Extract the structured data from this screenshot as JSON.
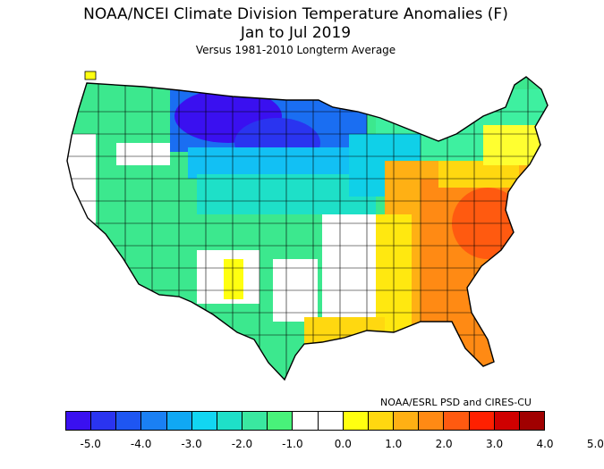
{
  "title": "NOAA/NCEI Climate Division Temperature Anomalies (F)",
  "subtitle": "Jan to Jul 2019",
  "baseline": "Versus 1981-2010 Longterm Average",
  "credit": "NOAA/ESRL PSD and CIRES-CU",
  "colors": {
    "outline": "#000000",
    "background": "#ffffff",
    "neg5": "#3a10f0",
    "neg4": "#1e56f2",
    "neg3": "#10a8f4",
    "neg2": "#1ee0c8",
    "neg1": "#48f27a",
    "zero": "#ffffff",
    "pos1": "#ffe810",
    "pos2": "#ff9a14",
    "pos3": "#ff3c0c",
    "pos5": "#a00000"
  },
  "legend": {
    "swatches": [
      "#3a10f0",
      "#2a34f0",
      "#1e56f2",
      "#1a80f4",
      "#10a8f4",
      "#12d6f2",
      "#1ee0c8",
      "#3ae8a0",
      "#48f27a",
      "#ffffff",
      "#ffffff",
      "#ffff10",
      "#ffd810",
      "#ffb014",
      "#ff8a14",
      "#ff5a10",
      "#ff2000",
      "#d00000",
      "#a00000"
    ],
    "ticks": [
      "-5.0",
      "-4.0",
      "-3.0",
      "-2.0",
      "-1.0",
      "0.0",
      "1.0",
      "2.0",
      "3.0",
      "4.0",
      "5.0"
    ]
  }
}
